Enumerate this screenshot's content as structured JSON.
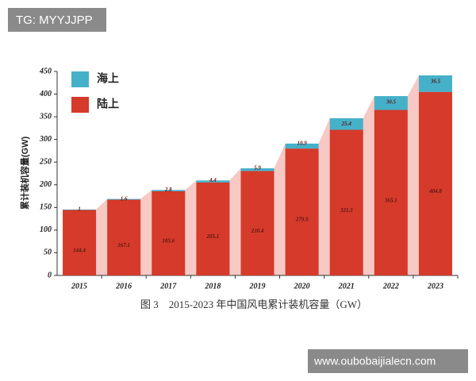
{
  "chart_data": {
    "type": "bar",
    "stacked": true,
    "title": "图 3　2015-2023 年中国风电累计装机容量（GW）",
    "y_label": "累计装机容量(GW)",
    "categories": [
      "2015",
      "2016",
      "2017",
      "2018",
      "2019",
      "2020",
      "2021",
      "2022",
      "2023"
    ],
    "series": [
      {
        "name": "陆上",
        "color": "#d53a2a",
        "values": [
          144.4,
          167.1,
          185.6,
          205.1,
          230.4,
          279.9,
          321.3,
          365.1,
          404.8
        ]
      },
      {
        "name": "海上",
        "color": "#45b1c9",
        "values": [
          1.0,
          1.6,
          2.8,
          4.4,
          5.9,
          10.9,
          25.4,
          30.5,
          36.5
        ]
      }
    ],
    "ylim": [
      0,
      450
    ],
    "yticks": [
      0,
      50,
      100,
      150,
      200,
      250,
      300,
      350,
      400,
      450
    ],
    "area_color": "#f6c9c5"
  },
  "watermarks": [
    "TG: MYYJJPP",
    "www.oubobaijialecn.com"
  ]
}
